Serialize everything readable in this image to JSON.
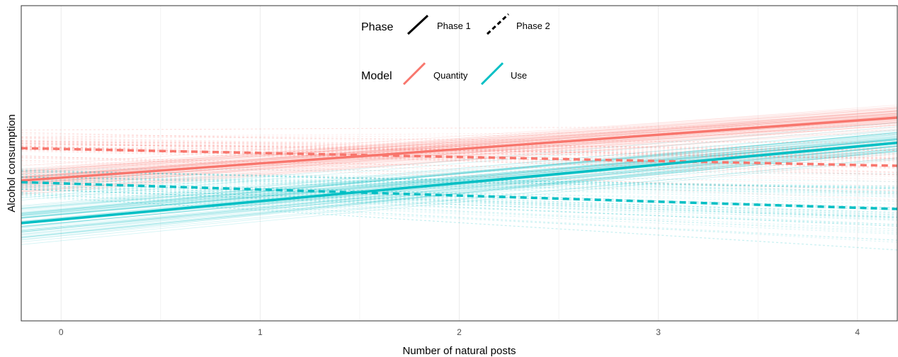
{
  "chart_data": {
    "type": "line",
    "title": "",
    "xlabel": "Number of natural posts",
    "ylabel": "Alcohol consumption",
    "xlim": [
      -0.2,
      4.2
    ],
    "ylim": [
      0,
      1
    ],
    "x_ticks": [
      "0",
      "1",
      "2",
      "3",
      "4"
    ],
    "x_tick_values": [
      0,
      1,
      2,
      3,
      4
    ],
    "grid": true,
    "legend_placement": "top-center",
    "legends": [
      {
        "title": "Phase",
        "entries": [
          {
            "label": "Phase 1",
            "linestyle": "solid"
          },
          {
            "label": "Phase 2",
            "linestyle": "dashed"
          }
        ]
      },
      {
        "title": "Model",
        "entries": [
          {
            "label": "Quantity",
            "color": "#f8766d"
          },
          {
            "label": "Use",
            "color": "#00bfc4"
          }
        ]
      }
    ],
    "series": [
      {
        "name": "Quantity",
        "phase": "Phase 1",
        "linestyle": "solid",
        "color": "#f8766d",
        "x": [
          -0.2,
          4.2
        ],
        "y": [
          0.445,
          0.645
        ]
      },
      {
        "name": "Quantity",
        "phase": "Phase 2",
        "linestyle": "dashed",
        "color": "#f8766d",
        "x": [
          -0.2,
          4.2
        ],
        "y": [
          0.548,
          0.492
        ]
      },
      {
        "name": "Use",
        "phase": "Phase 1",
        "linestyle": "solid",
        "color": "#00bfc4",
        "x": [
          -0.2,
          4.2
        ],
        "y": [
          0.31,
          0.565
        ]
      },
      {
        "name": "Use",
        "phase": "Phase 2",
        "linestyle": "dashed",
        "color": "#00bfc4",
        "x": [
          -0.2,
          4.2
        ],
        "y": [
          0.44,
          0.355
        ]
      }
    ]
  }
}
